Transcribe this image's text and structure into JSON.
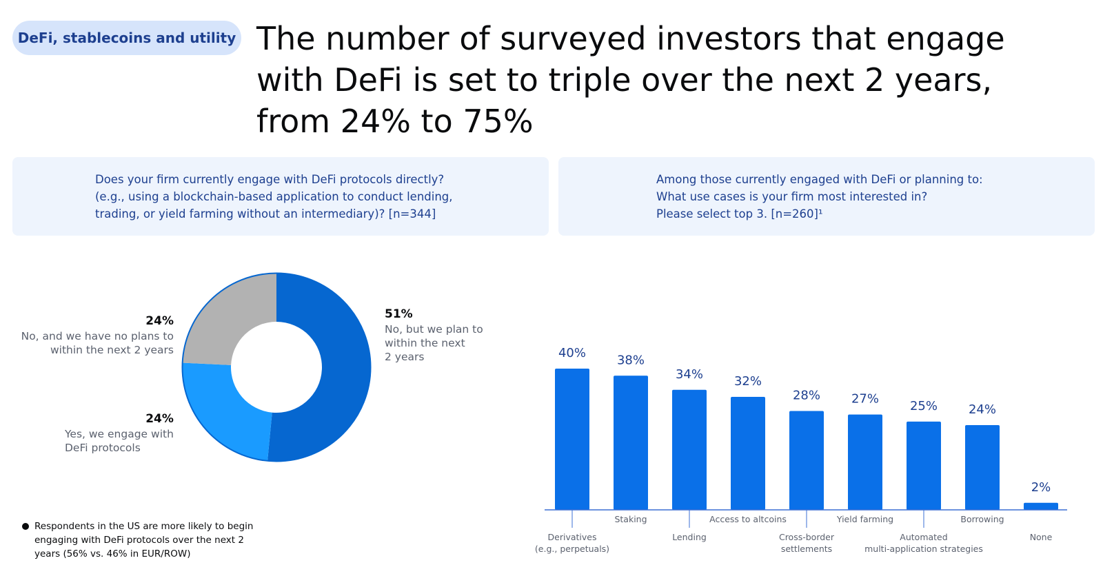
{
  "header": {
    "section_tag": "DeFi, stablecoins and utility",
    "headline_lines": [
      "The number of surveyed investors that engage",
      "with DeFi is set to triple over the next 2 years,",
      "from 24% to 75%"
    ]
  },
  "questions": {
    "left": [
      "Does your firm currently engage with DeFi protocols directly?",
      "(e.g., using a blockchain-based application to conduct lending,",
      "trading, or yield farming without an intermediary)? [n=344]"
    ],
    "right": [
      "Among those currently engaged with DeFi or planning to:",
      "What use cases is your firm most interested in?",
      "Please select top 3. [n=260]¹"
    ]
  },
  "footnote": "Respondents in the US are more likely to begin engaging with DeFi protocols over the next 2 years (56% vs. 46% in EUR/ROW)",
  "chart_data": [
    {
      "type": "pie",
      "title": "",
      "slices": [
        {
          "label_pct": "51%",
          "label_lines": [
            "No, but we plan to",
            "within the next",
            "2 years"
          ],
          "value": 51,
          "color": "#0667d0"
        },
        {
          "label_pct": "24%",
          "label_lines": [
            "Yes, we engage with",
            "DeFi protocols"
          ],
          "value": 24,
          "color": "#1a9bff"
        },
        {
          "label_pct": "24%",
          "label_lines": [
            "No, and we have no plans to",
            "within the next 2 years"
          ],
          "value": 24,
          "color": "#b2b2b2"
        }
      ]
    },
    {
      "type": "bar",
      "title": "",
      "xlabel": "",
      "ylabel": "",
      "ylim": [
        0,
        40
      ],
      "bar_color": "#0a70e8",
      "data_labels": [
        "40%",
        "38%",
        "34%",
        "32%",
        "28%",
        "27%",
        "25%",
        "24%",
        "2%"
      ],
      "categories": [
        {
          "lines": [
            "Derivatives",
            "(e.g., perpetuals)"
          ],
          "row": "low"
        },
        {
          "lines": [
            "Staking"
          ],
          "row": "high"
        },
        {
          "lines": [
            "Lending"
          ],
          "row": "low"
        },
        {
          "lines": [
            "Access to altcoins"
          ],
          "row": "high"
        },
        {
          "lines": [
            "Cross-border",
            "settlements"
          ],
          "row": "low"
        },
        {
          "lines": [
            "Yield farming"
          ],
          "row": "high"
        },
        {
          "lines": [
            "Automated",
            "multi-application strategies"
          ],
          "row": "low"
        },
        {
          "lines": [
            "Borrowing"
          ],
          "row": "high"
        },
        {
          "lines": [
            "None"
          ],
          "row": "low"
        }
      ],
      "values": [
        40,
        38,
        34,
        32,
        28,
        27,
        25,
        24,
        2
      ]
    }
  ]
}
